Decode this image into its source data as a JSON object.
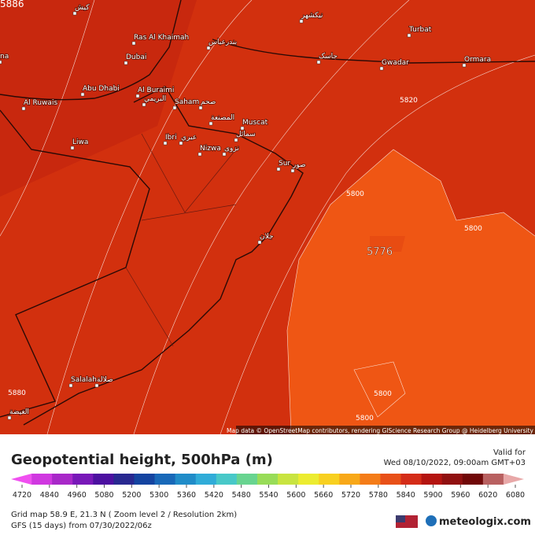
{
  "map": {
    "contour_labels": [
      "5886",
      "5820",
      "5800",
      "5776",
      "5800",
      "5880",
      "5800",
      "5800"
    ],
    "places": [
      "کیش",
      "Ras Al Khaimah",
      "Dubai",
      "Abu Dhabi",
      "Al Buraimi",
      "البريمي",
      "Al Ruwais",
      "Saham",
      "صحم",
      "المصنعة",
      "Muscat",
      "سمائل",
      "Ibri",
      "عبري",
      "Nizwa",
      "نزوى",
      "Liwa",
      "Sur",
      "صور",
      "جلان",
      "Salalah",
      "صلالة",
      "الغيضة",
      "Turbat",
      "Gwadar",
      "Ormara",
      "جاسک",
      "بندرعباس",
      "نيكشهر",
      "na"
    ],
    "attribution": "Map data © OpenStreetMap contributors, rendering GIScience Research Group @ Heidelberg University"
  },
  "legend": {
    "title": "Geopotential height, 500hPa (m)",
    "valid_label": "Valid for",
    "valid_time": "Wed 08/10/2022, 09:00am GMT+03",
    "ticks": [
      "4720",
      "4840",
      "4960",
      "5080",
      "5200",
      "5300",
      "5360",
      "5420",
      "5480",
      "5540",
      "5600",
      "5660",
      "5720",
      "5780",
      "5840",
      "5900",
      "5960",
      "6020",
      "6080"
    ],
    "colors": [
      "#f050f0",
      "#d038e0",
      "#a828c8",
      "#7818b8",
      "#4c10a0",
      "#282890",
      "#1444a0",
      "#1868b8",
      "#208cc8",
      "#30acd8",
      "#48c8c8",
      "#68d490",
      "#98dc58",
      "#c8e440",
      "#ecec30",
      "#f8d020",
      "#f8a818",
      "#f47c18",
      "#e85018",
      "#d42c18",
      "#b41410",
      "#901010",
      "#700808",
      "#b86060",
      "#e8a8a8"
    ],
    "grid_info": "Grid map 58.9 E, 21.3 N ( Zoom level 2 / Resolution 2km)",
    "model_info": "GFS (15 days) from 07/30/2022/06z",
    "brand": "meteologix.com"
  }
}
